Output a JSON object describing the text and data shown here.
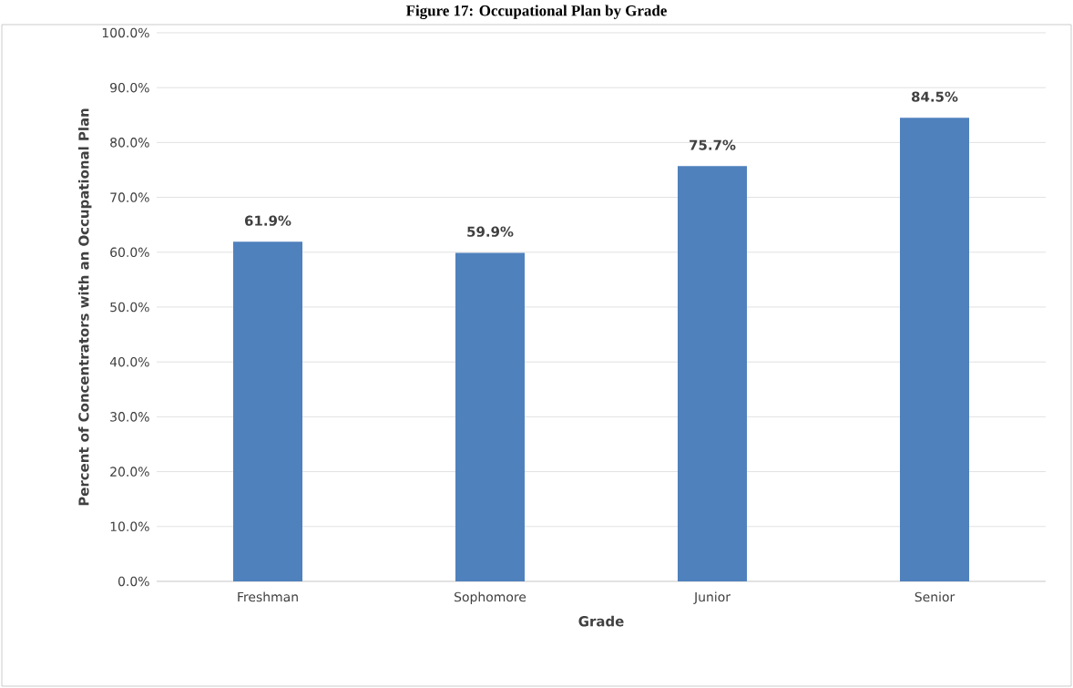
{
  "chart_data": {
    "type": "bar",
    "title": "Figure 17: Occupational Plan by Grade",
    "xlabel": "Grade",
    "ylabel": "Percent of Concentrators with an Occupational Plan",
    "categories": [
      "Freshman",
      "Sophomore",
      "Junior",
      "Senior"
    ],
    "values": [
      61.9,
      59.9,
      75.7,
      84.5
    ],
    "color": "#4f81bd",
    "value_labels": [
      "61.9%",
      "59.9%",
      "75.7%",
      "84.5%"
    ],
    "ylim": [
      0,
      100
    ],
    "yticks": [
      {
        "value": 0,
        "label": "0.0%"
      },
      {
        "value": 10,
        "label": "10.0%"
      },
      {
        "value": 20,
        "label": "20.0%"
      },
      {
        "value": 30,
        "label": "30.0%"
      },
      {
        "value": 40,
        "label": "40.0%"
      },
      {
        "value": 50,
        "label": "50.0%"
      },
      {
        "value": 60,
        "label": "60.0%"
      },
      {
        "value": 70,
        "label": "70.0%"
      },
      {
        "value": 80,
        "label": "80.0%"
      },
      {
        "value": 90,
        "label": "90.0%"
      },
      {
        "value": 100,
        "label": "100.0%"
      }
    ],
    "grid": "y"
  }
}
